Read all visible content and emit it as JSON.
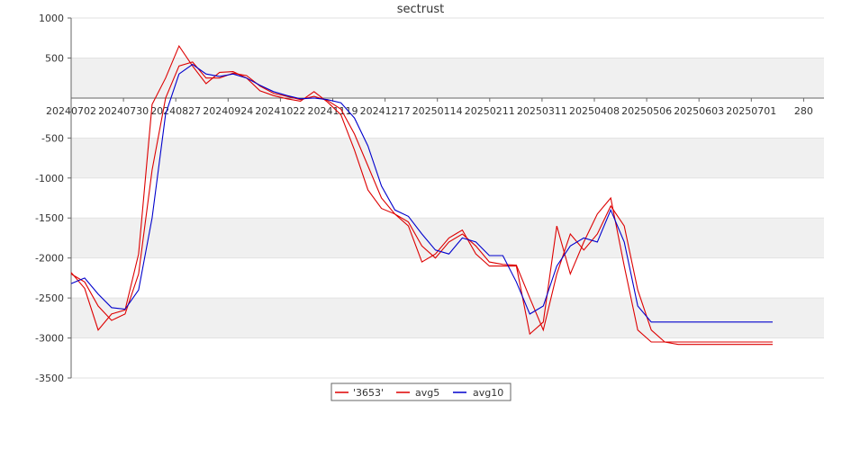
{
  "chart_data": {
    "type": "line",
    "title": "sectrust",
    "xlabel": "",
    "ylabel": "",
    "ylim": [
      -3500,
      1000
    ],
    "yticks": [
      1000,
      500,
      -500,
      -1000,
      -1500,
      -2000,
      -2500,
      -3000,
      -3500
    ],
    "x_tick_labels": [
      "20240702",
      "20240730",
      "20240827",
      "20240924",
      "20241022",
      "20241119",
      "20241217",
      "20250114",
      "20250211",
      "20250311",
      "20250408",
      "20250506",
      "20250603",
      "20250701",
      "280"
    ],
    "grid": "alternating horizontal bands",
    "legend_position": "bottom-center",
    "x": [
      "20240702",
      "20240709",
      "20240716",
      "20240723",
      "20240730",
      "20240806",
      "20240813",
      "20240820",
      "20240827",
      "20240903",
      "20240910",
      "20240917",
      "20240924",
      "20241001",
      "20241008",
      "20241015",
      "20241022",
      "20241029",
      "20241105",
      "20241112",
      "20241119",
      "20241126",
      "20241203",
      "20241210",
      "20241217",
      "20241224",
      "20241231",
      "20250107",
      "20250114",
      "20250121",
      "20250128",
      "20250204",
      "20250211",
      "20250218",
      "20250225",
      "20250304",
      "20250311",
      "20250318",
      "20250325",
      "20250401",
      "20250408",
      "20250415",
      "20250422",
      "20250429",
      "20250506",
      "20250513",
      "20250520",
      "20250527",
      "20250603",
      "20250610",
      "20250617",
      "20250624",
      "20250701"
    ],
    "series": [
      {
        "name": "'3653'",
        "color": "#dd0000",
        "values": [
          -2180,
          -2380,
          -2900,
          -2700,
          -2650,
          -1950,
          -80,
          250,
          650,
          400,
          180,
          320,
          330,
          250,
          90,
          30,
          -10,
          -40,
          80,
          -50,
          -210,
          -650,
          -1150,
          -1380,
          -1450,
          -1600,
          -2050,
          -1950,
          -1750,
          -1650,
          -1950,
          -2100,
          -2100,
          -2100,
          -2950,
          -2800,
          -1600,
          -2200,
          -1800,
          -1450,
          -1250,
          -2100,
          -2900,
          -3050,
          -3050,
          -3050,
          -3050,
          -3050,
          -3050,
          -3050,
          -3050,
          -3050,
          -3050
        ]
      },
      {
        "name": "avg5",
        "color": "#dd0000",
        "values": [
          -2200,
          -2300,
          -2600,
          -2780,
          -2700,
          -2200,
          -900,
          0,
          400,
          450,
          250,
          250,
          310,
          280,
          150,
          60,
          20,
          -20,
          20,
          -30,
          -140,
          -450,
          -850,
          -1250,
          -1450,
          -1550,
          -1850,
          -2000,
          -1800,
          -1700,
          -1850,
          -2050,
          -2080,
          -2090,
          -2500,
          -2900,
          -2200,
          -1700,
          -1900,
          -1700,
          -1350,
          -1600,
          -2400,
          -2900,
          -3050,
          -3080,
          -3080,
          -3080,
          -3080,
          -3080,
          -3080,
          -3080,
          -3080
        ]
      },
      {
        "name": "avg10",
        "color": "#0000cc",
        "values": [
          -2320,
          -2250,
          -2450,
          -2620,
          -2640,
          -2400,
          -1500,
          -200,
          300,
          420,
          300,
          270,
          300,
          250,
          160,
          80,
          30,
          -10,
          0,
          -20,
          -60,
          -250,
          -600,
          -1100,
          -1400,
          -1480,
          -1700,
          -1900,
          -1950,
          -1750,
          -1800,
          -1970,
          -1970,
          -2300,
          -2700,
          -2600,
          -2100,
          -1850,
          -1750,
          -1800,
          -1400,
          -1800,
          -2600,
          -2800,
          -2800,
          -2800,
          -2800,
          -2800,
          -2800,
          -2800,
          -2800,
          -2800,
          -2800
        ]
      }
    ]
  }
}
